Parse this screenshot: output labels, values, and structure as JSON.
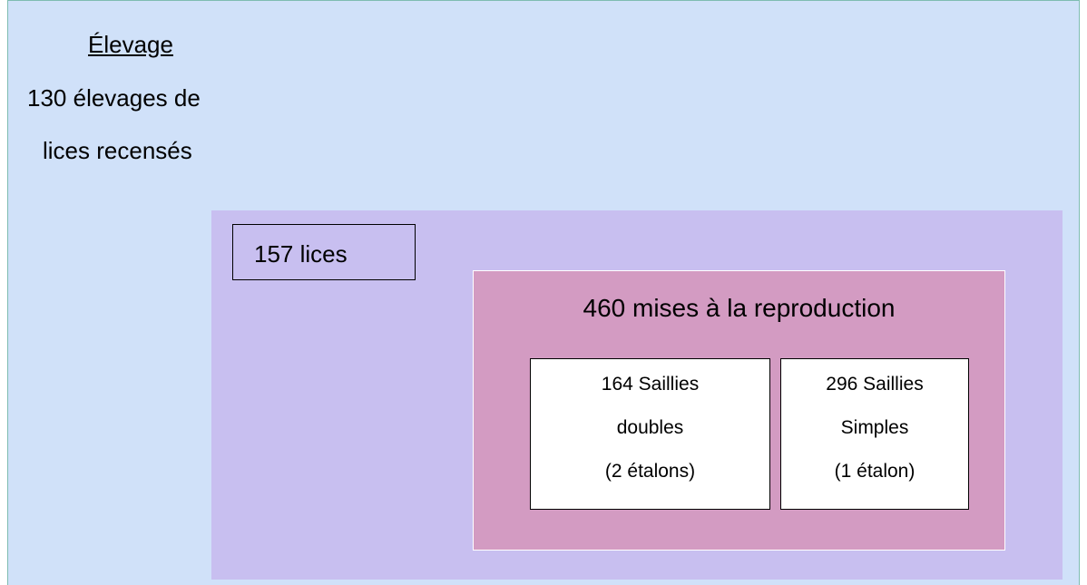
{
  "header": {
    "title": "Élevage",
    "lines": [
      "130 élevages de",
      "lices recensés"
    ]
  },
  "lices": "157 lices",
  "reproduction": {
    "title": "460 mises à la reproduction",
    "boxes": [
      {
        "lines": [
          "164 Saillies",
          "doubles",
          "(2 étalons)"
        ]
      },
      {
        "lines": [
          "296 Saillies",
          "Simples",
          "(1 étalon)"
        ]
      }
    ]
  }
}
